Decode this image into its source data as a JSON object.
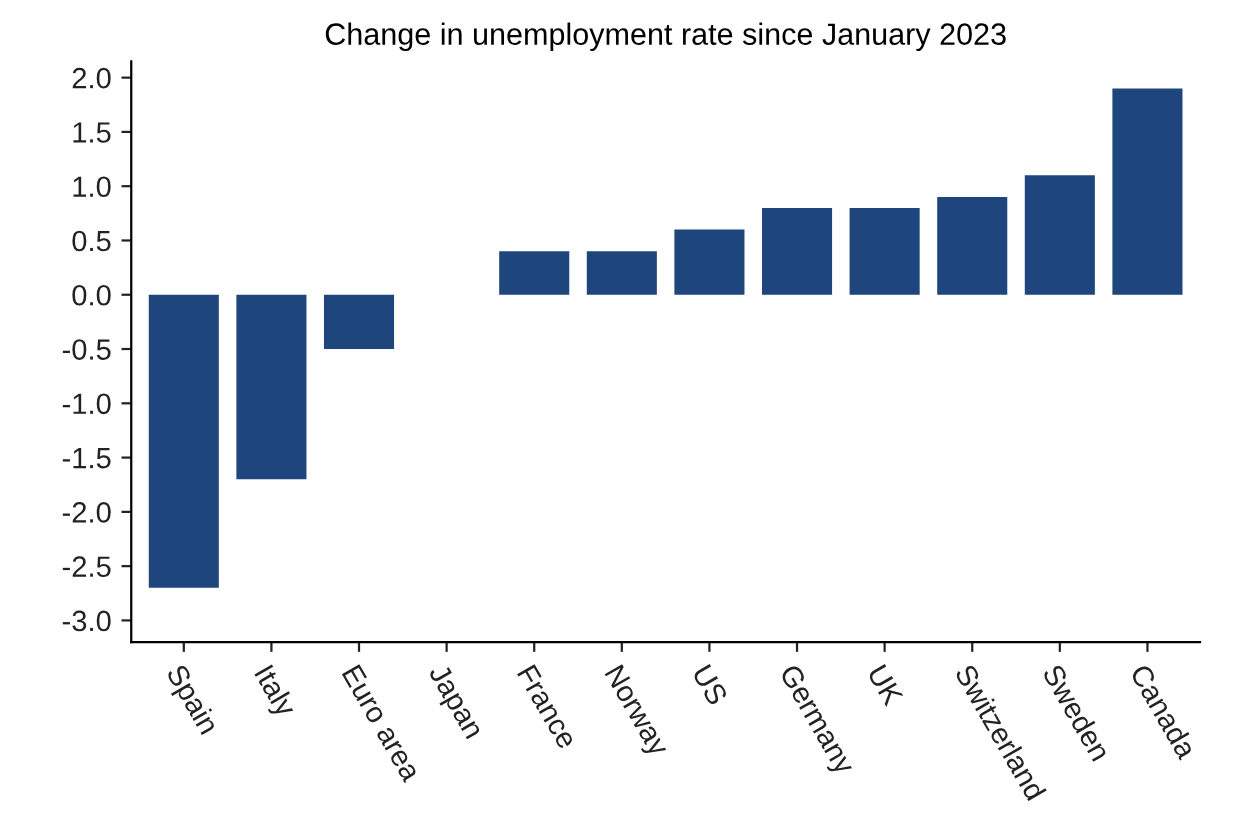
{
  "chart_data": {
    "type": "bar",
    "title": "Change in unemployment rate since January 2023",
    "categories": [
      "Spain",
      "Italy",
      "Euro area",
      "Japan",
      "France",
      "Norway",
      "US",
      "Germany",
      "UK",
      "Switzerland",
      "Sweden",
      "Canada"
    ],
    "values": [
      -2.7,
      -1.7,
      -0.5,
      0,
      0.4,
      0.4,
      0.6,
      0.8,
      0.8,
      0.9,
      1.1,
      1.9
    ],
    "color": "#1f467c",
    "ylim": [
      -3.2,
      2.15
    ],
    "yticks": [
      {
        "value": -3.0,
        "label": "-3.0"
      },
      {
        "value": -2.5,
        "label": "-2.5"
      },
      {
        "value": -2.0,
        "label": "-2.0"
      },
      {
        "value": -1.5,
        "label": "-1.5"
      },
      {
        "value": -1.0,
        "label": "-1.0"
      },
      {
        "value": -0.5,
        "label": "-0.5"
      },
      {
        "value": 0.0,
        "label": "0.0"
      },
      {
        "value": 0.5,
        "label": "0.5"
      },
      {
        "value": 1.0,
        "label": "1.0"
      },
      {
        "value": 1.5,
        "label": "1.5"
      },
      {
        "value": 2.0,
        "label": "2.0"
      }
    ],
    "grid": false,
    "legend": false
  }
}
